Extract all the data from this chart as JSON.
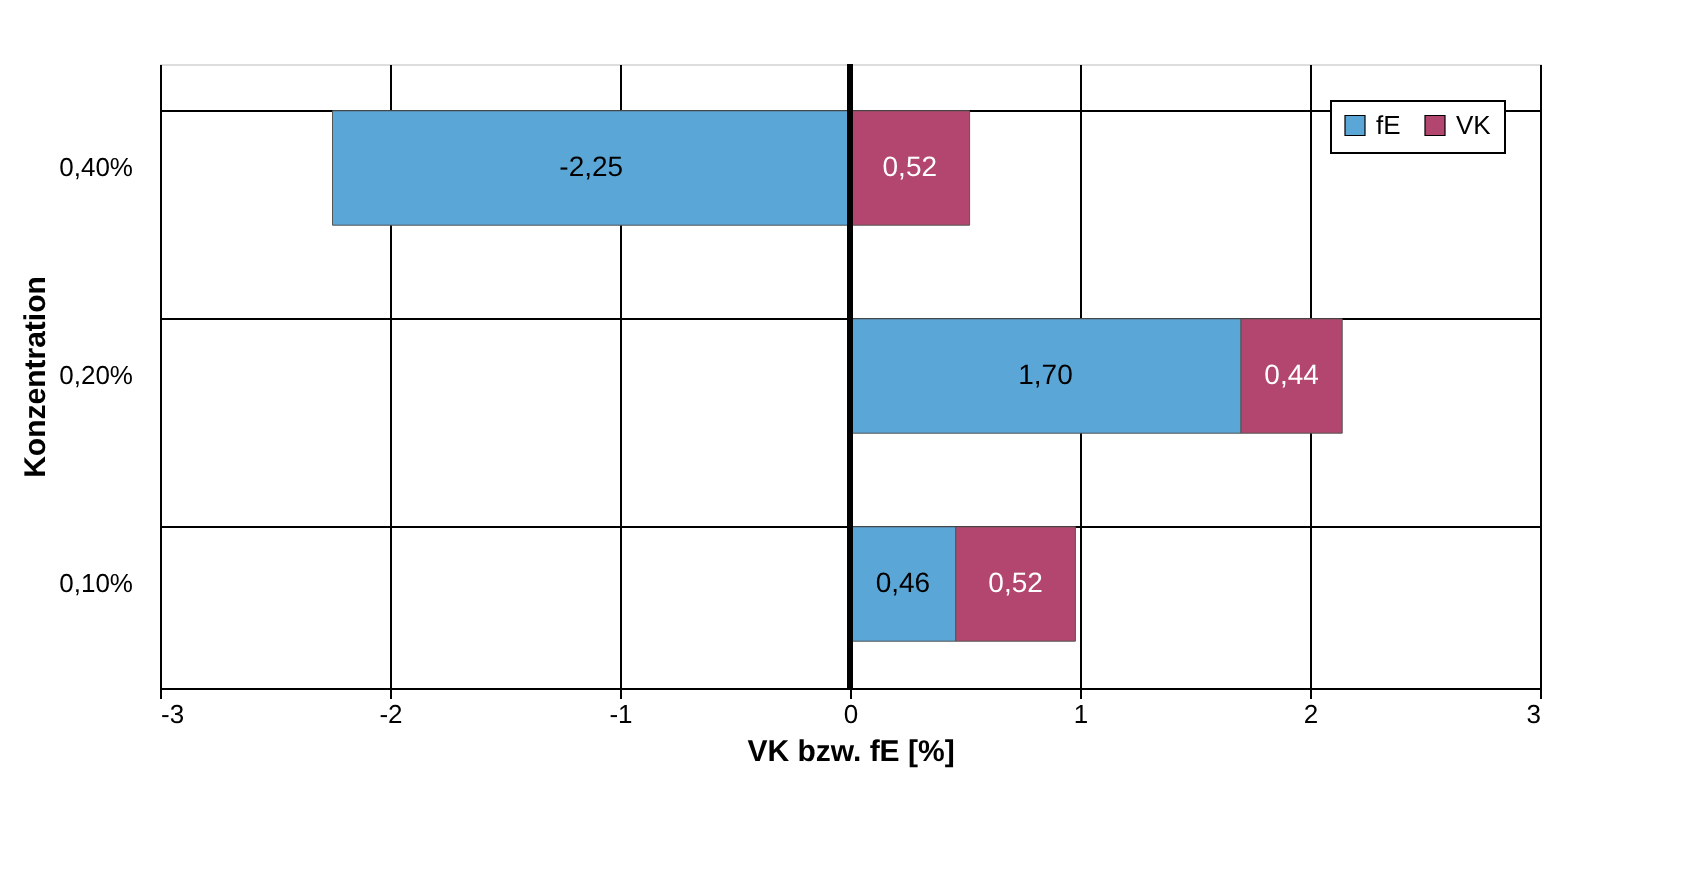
{
  "chart_data": {
    "type": "bar",
    "orientation": "horizontal",
    "stacked": true,
    "categories": [
      "0,40%",
      "0,20%",
      "0,10%"
    ],
    "series": [
      {
        "name": "fE",
        "color": "#5aa6d6",
        "values": [
          -2.25,
          1.7,
          0.46
        ],
        "value_labels": [
          "-2,25",
          "1,70",
          "0,46"
        ]
      },
      {
        "name": "VK",
        "color": "#b3466e",
        "values": [
          0.52,
          0.44,
          0.52
        ],
        "value_labels": [
          "0,52",
          "0,44",
          "0,52"
        ]
      }
    ],
    "xlim": [
      -3,
      3
    ],
    "xticks": [
      -3,
      -2,
      -1,
      0,
      1,
      2,
      3
    ],
    "xlabel": "VK bzw. fE [%]",
    "ylabel": "Konzentration",
    "ref_lines": [
      {
        "axis": "x",
        "value": 0
      }
    ],
    "grid": true,
    "legend": "top right"
  }
}
